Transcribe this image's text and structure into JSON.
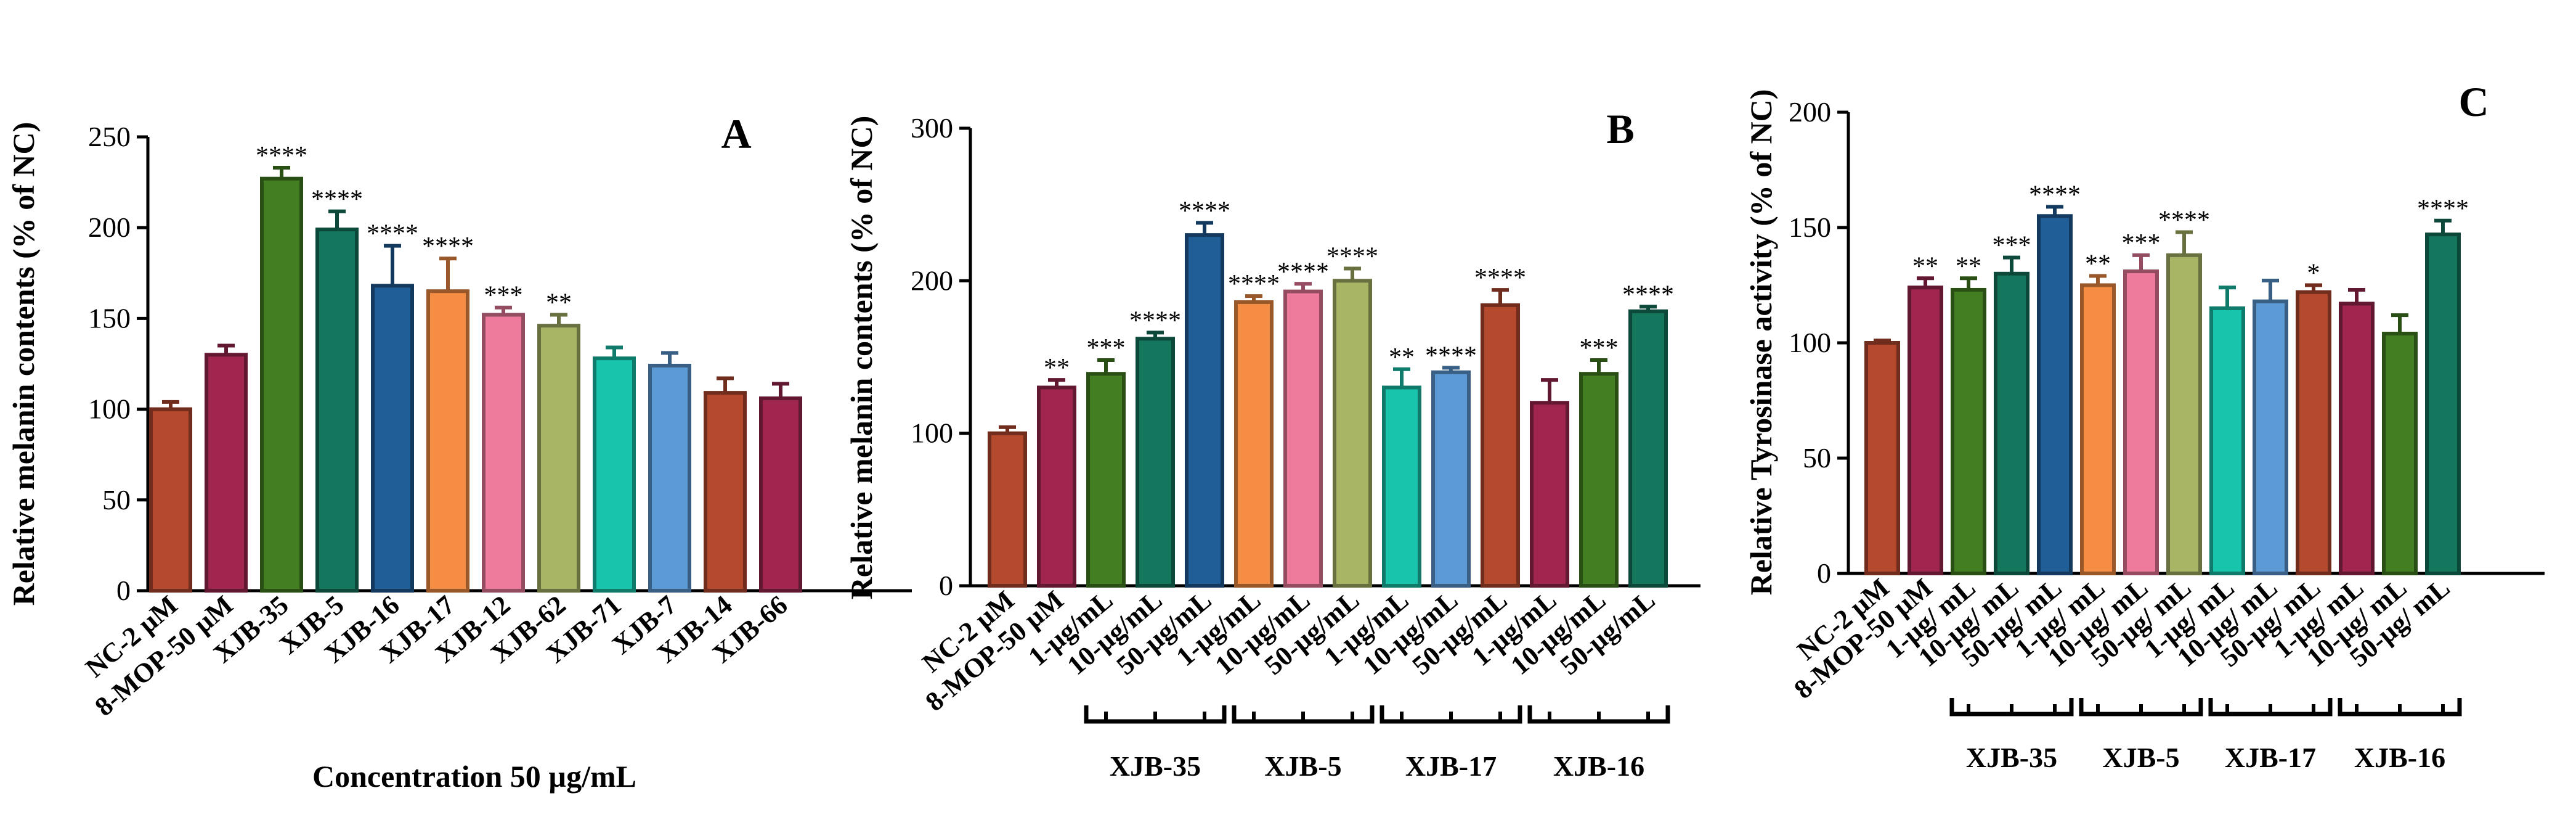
{
  "chart_data": [
    {
      "type": "bar",
      "panel": "A",
      "ylabel": "Relative melanin contents (% of NC)",
      "xlabel": "Concentration 50 µg/mL",
      "ylim": [
        0,
        250
      ],
      "yticks": [
        0,
        50,
        100,
        150,
        200,
        250
      ],
      "categories": [
        "NC-2 µM",
        "8-MOP-50 µM",
        "XJB-35",
        "XJB-5",
        "XJB-16",
        "XJB-17",
        "XJB-12",
        "XJB-62",
        "XJB-71",
        "XJB-7",
        "XJB-14",
        "XJB-66"
      ],
      "values": [
        100,
        130,
        227,
        199,
        168,
        165,
        152,
        146,
        128,
        124,
        109,
        106
      ],
      "errors": [
        4,
        5,
        6,
        10,
        22,
        18,
        4,
        6,
        6,
        7,
        8,
        8
      ],
      "significance": [
        "",
        "",
        "****",
        "****",
        "****",
        "****",
        "***",
        "**",
        "",
        "",
        "",
        ""
      ],
      "colors": [
        "#B5492E",
        "#A0264F",
        "#437F22",
        "#15765E",
        "#1F5E97",
        "#F58E44",
        "#EE7B9C",
        "#A8B565",
        "#19C4AC",
        "#5C9AD6",
        "#B5492E",
        "#A0264F"
      ],
      "groups": []
    },
    {
      "type": "bar",
      "panel": "B",
      "ylabel": "Relative melanin contents (% of NC)",
      "ylim": [
        0,
        300
      ],
      "yticks": [
        0,
        100,
        200,
        300
      ],
      "categories": [
        "NC-2 µM",
        "8-MOP-50 µM",
        "1-µg/mL",
        "10-µg/mL",
        "50-µg/mL",
        "1-µg/mL",
        "10-µg/mL",
        "50-µg/mL",
        "1-µg/mL",
        "10-µg/mL",
        "50-µg/mL",
        "1-µg/mL",
        "10-µg/mL",
        "50-µg/mL"
      ],
      "values": [
        100,
        130,
        139,
        162,
        230,
        186,
        193,
        200,
        130,
        140,
        184,
        120,
        139,
        180
      ],
      "errors": [
        4,
        5,
        9,
        4,
        8,
        4,
        5,
        8,
        12,
        3,
        10,
        15,
        9,
        3
      ],
      "significance": [
        "",
        "**",
        "***",
        "****",
        "****",
        "****",
        "****",
        "****",
        "**",
        "****",
        "****",
        "",
        "***",
        "****"
      ],
      "colors": [
        "#B5492E",
        "#A0264F",
        "#437F22",
        "#15765E",
        "#1F5E97",
        "#F58E44",
        "#EE7B9C",
        "#A8B565",
        "#19C4AC",
        "#5C9AD6",
        "#B5492E",
        "#A0264F",
        "#437F22",
        "#15765E"
      ],
      "groups": [
        {
          "label": "XJB-35",
          "from": 2,
          "to": 4
        },
        {
          "label": "XJB-5",
          "from": 5,
          "to": 7
        },
        {
          "label": "XJB-17",
          "from": 8,
          "to": 10
        },
        {
          "label": "XJB-16",
          "from": 11,
          "to": 13
        }
      ]
    },
    {
      "type": "bar",
      "panel": "C",
      "ylabel": "Relative Tyrosinase activity (% of NC)",
      "ylim": [
        0,
        200
      ],
      "yticks": [
        0,
        50,
        100,
        150,
        200
      ],
      "categories": [
        "NC-2 µM",
        "8-MOP-50 µM",
        "1-µg/ mL",
        "10-µg/ mL",
        "50-µg/ mL",
        "1-µg/ mL",
        "10-µg/ mL",
        "50-µg/ mL",
        "1-µg/ mL",
        "10-µg/ mL",
        "50-µg/ mL",
        "1-µg/ mL",
        "10-µg/ mL",
        "50-µg/ mL"
      ],
      "values": [
        100,
        124,
        123,
        130,
        155,
        125,
        131,
        138,
        115,
        118,
        122,
        117,
        104,
        147
      ],
      "errors": [
        1,
        4,
        5,
        7,
        4,
        4,
        7,
        10,
        9,
        9,
        3,
        6,
        8,
        6
      ],
      "significance": [
        "",
        "**",
        "**",
        "***",
        "****",
        "**",
        "***",
        "****",
        "",
        "",
        "*",
        "",
        "",
        "****"
      ],
      "colors": [
        "#B5492E",
        "#A0264F",
        "#437F22",
        "#15765E",
        "#1F5E97",
        "#F58E44",
        "#EE7B9C",
        "#A8B565",
        "#19C4AC",
        "#5C9AD6",
        "#B5492E",
        "#A0264F",
        "#437F22",
        "#15765E"
      ],
      "groups": [
        {
          "label": "XJB-35",
          "from": 2,
          "to": 4
        },
        {
          "label": "XJB-5",
          "from": 5,
          "to": 7
        },
        {
          "label": "XJB-17",
          "from": 8,
          "to": 10
        },
        {
          "label": "XJB-16",
          "from": 11,
          "to": 13
        }
      ]
    }
  ]
}
